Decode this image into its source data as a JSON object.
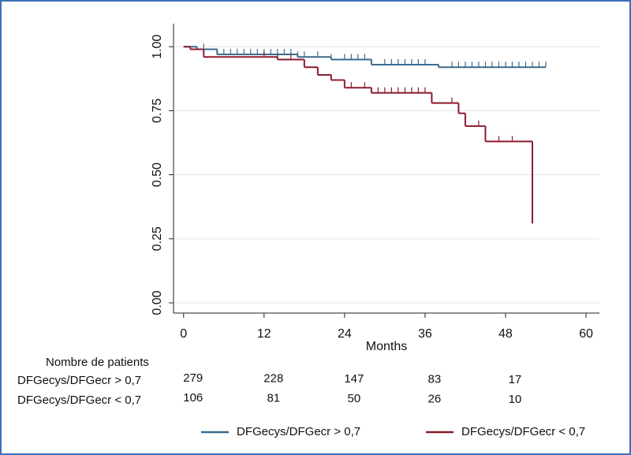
{
  "chart_data": {
    "type": "kaplan-meier",
    "x_label": "Months",
    "xlim": [
      -1.5,
      62
    ],
    "xticks": [
      0,
      12,
      24,
      36,
      48,
      60
    ],
    "ylim": [
      -0.04,
      1.09
    ],
    "yticks": [
      {
        "value": 0,
        "label": "0.00"
      },
      {
        "value": 0.25,
        "label": "0.25"
      },
      {
        "value": 0.5,
        "label": "0.50"
      },
      {
        "value": 0.75,
        "label": "0.75"
      },
      {
        "value": 1,
        "label": "1.00"
      }
    ],
    "grid": true,
    "series": [
      {
        "name": "DFGecys/DFGecr > 0,7",
        "color": "#3b6b8c",
        "x": [
          0,
          2,
          5,
          17,
          22,
          28,
          38,
          54
        ],
        "values": [
          1,
          0.99,
          0.97,
          0.96,
          0.95,
          0.93,
          0.92,
          0.92
        ],
        "censored": [
          3,
          5,
          6,
          7,
          8,
          9,
          10,
          11,
          12,
          13,
          14,
          15,
          16,
          17,
          18,
          20,
          22,
          24,
          25,
          26,
          27,
          28,
          30,
          31,
          32,
          33,
          34,
          35,
          36,
          40,
          41,
          42,
          43,
          44,
          45,
          46,
          47,
          48,
          49,
          50,
          51,
          52,
          53,
          54
        ]
      },
      {
        "name": "DFGecys/DFGecr < 0,7",
        "color": "#8c1c2c",
        "x": [
          0,
          1,
          3,
          14,
          18,
          20,
          22,
          24,
          28,
          37,
          41,
          42,
          45,
          52
        ],
        "values": [
          1,
          0.99,
          0.96,
          0.95,
          0.92,
          0.89,
          0.87,
          0.84,
          0.82,
          0.78,
          0.74,
          0.69,
          0.63,
          0.31
        ],
        "censored": [
          12,
          14,
          16,
          22,
          25,
          27,
          29,
          30,
          31,
          32,
          33,
          34,
          35,
          36,
          40,
          44,
          47,
          49
        ]
      }
    ],
    "risk_table": {
      "title": "Nombre de patients",
      "times": [
        0,
        12,
        24,
        36,
        48
      ],
      "rows": [
        {
          "name": "DFGecys/DFGecr > 0,7",
          "counts": [
            279,
            228,
            147,
            83,
            17
          ]
        },
        {
          "name": "DFGecys/DFGecr < 0,7",
          "counts": [
            106,
            81,
            50,
            26,
            10
          ]
        }
      ]
    }
  }
}
